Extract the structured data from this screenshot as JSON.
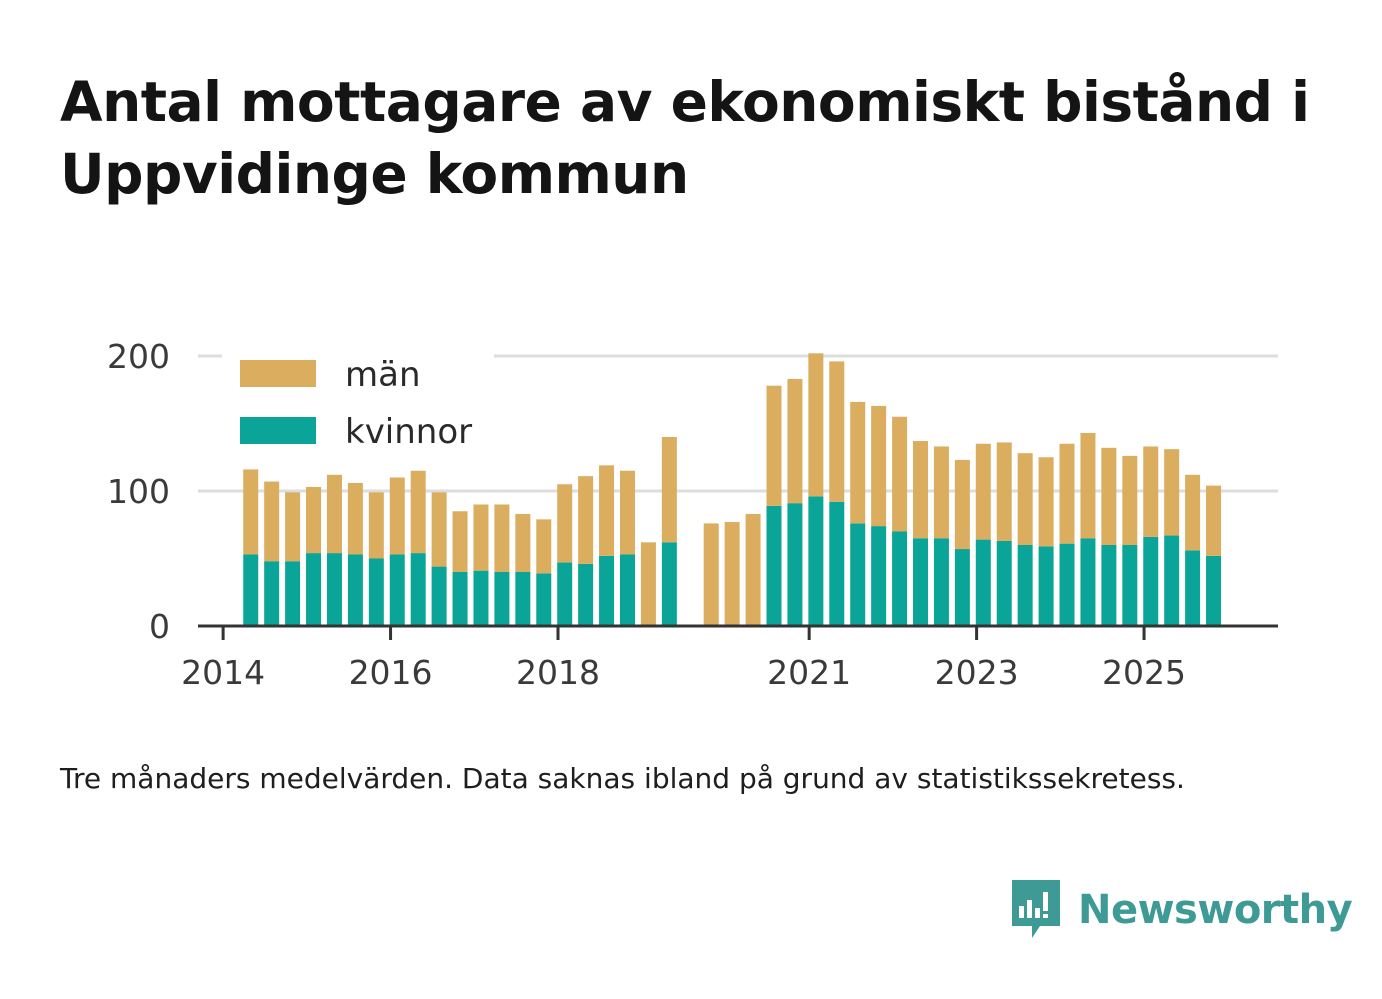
{
  "title": "Antal mottagare av ekonomiskt bistånd i Uppvidinge kommun",
  "footnote": "Tre månaders medelvärden. Data saknas ibland på grund av statistikssekretess.",
  "brand": {
    "name": "Newsworthy",
    "icon": "newsworthy-logo-icon",
    "color": "#3d9a95"
  },
  "colors": {
    "man": "#dbad5f",
    "kvinnor": "#0aa598",
    "grid": "#dddddd",
    "axis": "#333333"
  },
  "chart_data": {
    "type": "bar",
    "stacked": true,
    "title": "Antal mottagare av ekonomiskt bistånd i Uppvidinge kommun",
    "xlabel": "",
    "ylabel": "",
    "ylim": [
      0,
      200
    ],
    "yticks": [
      0,
      100,
      200
    ],
    "xticks": [
      "2014",
      "2016",
      "2018",
      "2021",
      "2023",
      "2025"
    ],
    "x_range": [
      2013.7,
      2026.6
    ],
    "grid": true,
    "legend_position": "top-left",
    "x": [
      2014.33,
      2014.58,
      2014.83,
      2015.08,
      2015.33,
      2015.58,
      2015.83,
      2016.08,
      2016.33,
      2016.58,
      2016.83,
      2017.08,
      2017.33,
      2017.58,
      2017.83,
      2018.08,
      2018.33,
      2018.58,
      2018.83,
      2019.08,
      2019.33,
      2019.83,
      2020.08,
      2020.33,
      2020.58,
      2020.83,
      2021.08,
      2021.33,
      2021.58,
      2021.83,
      2022.08,
      2022.33,
      2022.58,
      2022.83,
      2023.08,
      2023.33,
      2023.58,
      2023.83,
      2024.08,
      2024.33,
      2024.58,
      2024.83,
      2025.08,
      2025.33,
      2025.58,
      2025.83
    ],
    "series": [
      {
        "name": "kvinnor",
        "values": [
          53,
          48,
          48,
          54,
          54,
          53,
          50,
          53,
          54,
          44,
          40,
          41,
          40,
          40,
          39,
          47,
          46,
          52,
          53,
          null,
          62,
          null,
          null,
          null,
          89,
          91,
          96,
          92,
          76,
          74,
          70,
          65,
          65,
          57,
          64,
          63,
          60,
          59,
          61,
          65,
          60,
          60,
          66,
          67,
          56,
          52
        ]
      },
      {
        "name": "män",
        "values": [
          63,
          59,
          51,
          49,
          58,
          53,
          49,
          57,
          61,
          55,
          45,
          49,
          50,
          43,
          40,
          58,
          65,
          67,
          62,
          62,
          78,
          76,
          77,
          83,
          89,
          92,
          106,
          104,
          90,
          89,
          85,
          72,
          68,
          66,
          71,
          73,
          68,
          66,
          74,
          78,
          72,
          66,
          67,
          64,
          56,
          52
        ]
      }
    ]
  }
}
